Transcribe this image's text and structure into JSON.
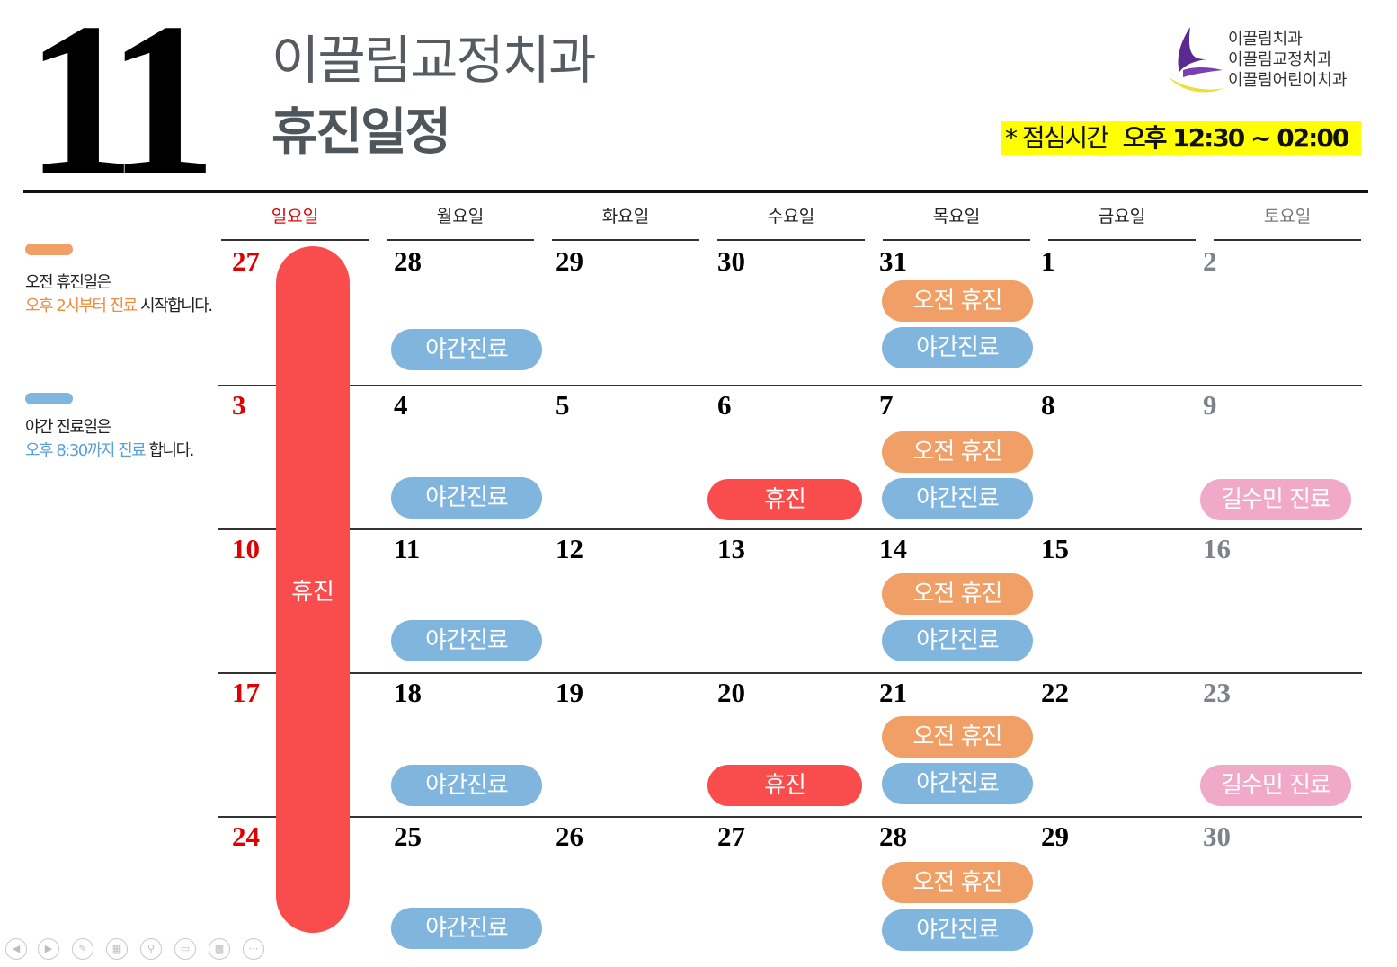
{
  "header": {
    "month": "11",
    "clinic_name": "이끌림교정치과",
    "subtitle": "휴진일정"
  },
  "logo": {
    "lines": [
      "이끌림치과",
      "이끌림교정치과",
      "이끌림어린이치과"
    ],
    "colors": {
      "purple": "#5a2a91",
      "yellow": "#e9e03a"
    }
  },
  "lunch": {
    "label": "* 점심시간",
    "time": "오후 12:30 ~ 02:00",
    "highlight_color": "#ffff00"
  },
  "weekdays": [
    "일요일",
    "월요일",
    "화요일",
    "수요일",
    "목요일",
    "금요일",
    "토요일"
  ],
  "weeks": [
    [
      "27",
      "28",
      "29",
      "30",
      "31",
      "1",
      "2"
    ],
    [
      "3",
      "4",
      "5",
      "6",
      "7",
      "8",
      "9"
    ],
    [
      "10",
      "11",
      "12",
      "13",
      "14",
      "15",
      "16"
    ],
    [
      "17",
      "18",
      "19",
      "20",
      "21",
      "22",
      "23"
    ],
    [
      "24",
      "25",
      "26",
      "27",
      "28",
      "29",
      "30"
    ]
  ],
  "labels": {
    "morning_closed": "오전 휴진",
    "night_clinic": "야간진료",
    "closed": "휴진",
    "doctor": "길수민 진료"
  },
  "legend": {
    "morning": {
      "line1": "오전 휴진일은",
      "accent": "오후 2시부터 진료",
      "rest": " 시작합니다."
    },
    "night": {
      "line1": "야간 진료일은",
      "accent": "오후 8:30까지 진료",
      "rest": " 합니다."
    }
  },
  "colors": {
    "morning_closed": "#f0a066",
    "night_clinic": "#80b6de",
    "closed": "#f94c4c",
    "doctor": "#f0a9c9",
    "sunday": "#e00000",
    "saturday": "#7d8388"
  },
  "toolbar_icons": [
    "prev-icon",
    "next-icon",
    "pen-icon",
    "slides-icon",
    "zoom-icon",
    "subtitle-icon",
    "camera-icon",
    "more-icon"
  ]
}
